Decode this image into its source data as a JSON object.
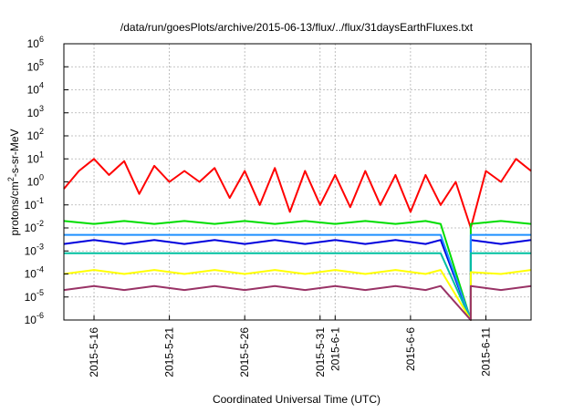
{
  "chart_data": {
    "type": "line",
    "title": "/data/run/goesPlots/archive/2015-06-13/flux/../flux/31daysEarthFluxes.txt",
    "xlabel": "Coordinated Universal Time (UTC)",
    "ylabel": "protons/cm2-s-sr-MeV",
    "ylabel_parts": {
      "prefix": "protons/cm",
      "sup": "2",
      "suffix": "-s-sr-MeV"
    },
    "yscale": "log",
    "ylim": [
      1e-06,
      1000000.0
    ],
    "xlim": [
      "2015-05-14",
      "2015-06-14"
    ],
    "grid": true,
    "legend": "none",
    "x_ticks": [
      {
        "date": "2015-05-16",
        "label": "2015-5-16"
      },
      {
        "date": "2015-05-21",
        "label": "2015-5-21"
      },
      {
        "date": "2015-05-26",
        "label": "2015-5-26"
      },
      {
        "date": "2015-05-31",
        "label": "2015-5-31"
      },
      {
        "date": "2015-06-01",
        "label": "2015-6-1"
      },
      {
        "date": "2015-06-06",
        "label": "2015-6-6"
      },
      {
        "date": "2015-06-11",
        "label": "2015-6-11"
      }
    ],
    "y_ticks": [
      {
        "exp": "-6"
      },
      {
        "exp": "-5"
      },
      {
        "exp": "-4"
      },
      {
        "exp": "-3"
      },
      {
        "exp": "-2"
      },
      {
        "exp": "-1"
      },
      {
        "exp": "0"
      },
      {
        "exp": "1"
      },
      {
        "exp": "2"
      },
      {
        "exp": "3"
      },
      {
        "exp": "4"
      },
      {
        "exp": "5"
      },
      {
        "exp": "6"
      }
    ],
    "y_tick_base": "10",
    "series": [
      {
        "color": "#ff0000",
        "values": [
          [
            "2015-05-14",
            0.5
          ],
          [
            "2015-05-15",
            3
          ],
          [
            "2015-05-16",
            10
          ],
          [
            "2015-05-17",
            2
          ],
          [
            "2015-05-18",
            8
          ],
          [
            "2015-05-19",
            0.3
          ],
          [
            "2015-05-20",
            5
          ],
          [
            "2015-05-21",
            1
          ],
          [
            "2015-05-22",
            3
          ],
          [
            "2015-05-23",
            1
          ],
          [
            "2015-05-24",
            4
          ],
          [
            "2015-05-25",
            0.2
          ],
          [
            "2015-05-26",
            3
          ],
          [
            "2015-05-27",
            0.1
          ],
          [
            "2015-05-28",
            4
          ],
          [
            "2015-05-29",
            0.05
          ],
          [
            "2015-05-30",
            3
          ],
          [
            "2015-05-31",
            0.1
          ],
          [
            "2015-06-01",
            2
          ],
          [
            "2015-06-02",
            0.08
          ],
          [
            "2015-06-03",
            3
          ],
          [
            "2015-06-04",
            0.1
          ],
          [
            "2015-06-05",
            2
          ],
          [
            "2015-06-06",
            0.05
          ],
          [
            "2015-06-07",
            2
          ],
          [
            "2015-06-08",
            0.1
          ],
          [
            "2015-06-09",
            1
          ],
          [
            "2015-06-10",
            0.01
          ],
          [
            "2015-06-11",
            3
          ],
          [
            "2015-06-12",
            1
          ],
          [
            "2015-06-13",
            10
          ],
          [
            "2015-06-14",
            3
          ]
        ]
      },
      {
        "color": "#00dd00",
        "values": [
          [
            "2015-05-14",
            0.02
          ],
          [
            "2015-05-16",
            0.015
          ],
          [
            "2015-05-18",
            0.02
          ],
          [
            "2015-05-20",
            0.015
          ],
          [
            "2015-05-22",
            0.02
          ],
          [
            "2015-05-24",
            0.015
          ],
          [
            "2015-05-26",
            0.02
          ],
          [
            "2015-05-28",
            0.015
          ],
          [
            "2015-05-30",
            0.02
          ],
          [
            "2015-06-01",
            0.015
          ],
          [
            "2015-06-03",
            0.02
          ],
          [
            "2015-06-05",
            0.015
          ],
          [
            "2015-06-07",
            0.02
          ],
          [
            "2015-06-08",
            0.015
          ],
          [
            "2015-06-10",
            1e-06
          ],
          [
            "2015-06-10",
            0.015
          ],
          [
            "2015-06-12",
            0.02
          ],
          [
            "2015-06-14",
            0.015
          ]
        ]
      },
      {
        "color": "#0000dd",
        "values": [
          [
            "2015-05-14",
            0.002
          ],
          [
            "2015-05-16",
            0.003
          ],
          [
            "2015-05-18",
            0.002
          ],
          [
            "2015-05-20",
            0.003
          ],
          [
            "2015-05-22",
            0.002
          ],
          [
            "2015-05-24",
            0.003
          ],
          [
            "2015-05-26",
            0.002
          ],
          [
            "2015-05-28",
            0.003
          ],
          [
            "2015-05-30",
            0.002
          ],
          [
            "2015-06-01",
            0.003
          ],
          [
            "2015-06-03",
            0.002
          ],
          [
            "2015-06-05",
            0.003
          ],
          [
            "2015-06-07",
            0.002
          ],
          [
            "2015-06-08",
            0.003
          ],
          [
            "2015-06-10",
            1e-06
          ],
          [
            "2015-06-10",
            0.003
          ],
          [
            "2015-06-12",
            0.002
          ],
          [
            "2015-06-14",
            0.003
          ]
        ]
      },
      {
        "color": "#1e90ff",
        "values": [
          [
            "2015-05-14",
            0.005
          ],
          [
            "2015-06-08",
            0.005
          ],
          [
            "2015-06-10",
            1e-06
          ],
          [
            "2015-06-10",
            0.005
          ],
          [
            "2015-06-14",
            0.005
          ]
        ]
      },
      {
        "color": "#00c0a0",
        "values": [
          [
            "2015-05-14",
            0.0008
          ],
          [
            "2015-06-08",
            0.0008
          ],
          [
            "2015-06-10",
            1e-06
          ],
          [
            "2015-06-10",
            0.0008
          ],
          [
            "2015-06-14",
            0.0008
          ]
        ]
      },
      {
        "color": "#ffff00",
        "values": [
          [
            "2015-05-14",
            0.0001
          ],
          [
            "2015-05-16",
            0.00015
          ],
          [
            "2015-05-18",
            0.0001
          ],
          [
            "2015-05-20",
            0.00015
          ],
          [
            "2015-05-22",
            0.0001
          ],
          [
            "2015-05-24",
            0.00015
          ],
          [
            "2015-05-26",
            0.0001
          ],
          [
            "2015-05-28",
            0.00015
          ],
          [
            "2015-05-30",
            0.0001
          ],
          [
            "2015-06-01",
            0.00015
          ],
          [
            "2015-06-03",
            0.0001
          ],
          [
            "2015-06-05",
            0.00015
          ],
          [
            "2015-06-07",
            0.0001
          ],
          [
            "2015-06-08",
            0.00015
          ],
          [
            "2015-06-10",
            1e-06
          ],
          [
            "2015-06-10",
            0.00012
          ],
          [
            "2015-06-12",
            0.0001
          ],
          [
            "2015-06-14",
            0.00015
          ]
        ]
      },
      {
        "color": "#993366",
        "values": [
          [
            "2015-05-14",
            2e-05
          ],
          [
            "2015-05-16",
            3e-05
          ],
          [
            "2015-05-18",
            2e-05
          ],
          [
            "2015-05-20",
            3e-05
          ],
          [
            "2015-05-22",
            2e-05
          ],
          [
            "2015-05-24",
            3e-05
          ],
          [
            "2015-05-26",
            2e-05
          ],
          [
            "2015-05-28",
            3e-05
          ],
          [
            "2015-05-30",
            2e-05
          ],
          [
            "2015-06-01",
            3e-05
          ],
          [
            "2015-06-03",
            2e-05
          ],
          [
            "2015-06-05",
            3e-05
          ],
          [
            "2015-06-07",
            2e-05
          ],
          [
            "2015-06-08",
            3e-05
          ],
          [
            "2015-06-10",
            1e-06
          ],
          [
            "2015-06-10",
            3e-05
          ],
          [
            "2015-06-12",
            2e-05
          ],
          [
            "2015-06-14",
            3e-05
          ]
        ]
      }
    ]
  }
}
